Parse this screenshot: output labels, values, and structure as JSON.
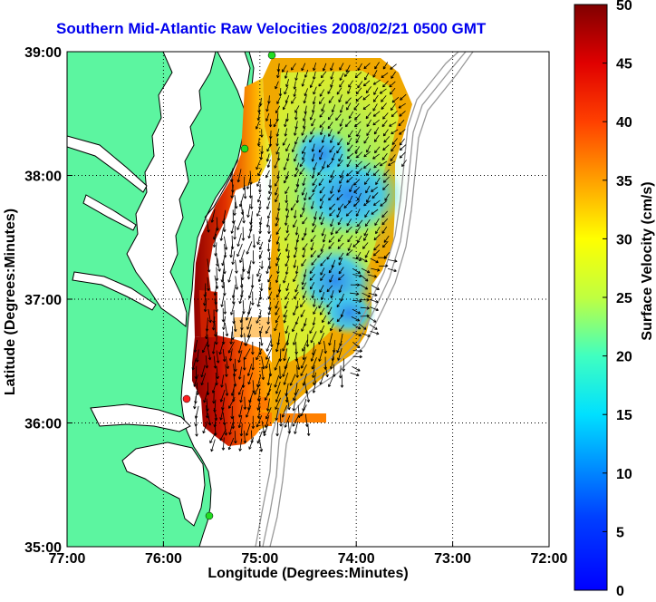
{
  "title": "Southern Mid-Atlantic Raw Velocities 2008/02/21 0500 GMT",
  "xlabel": "Longitude (Degrees:Minutes)",
  "ylabel": "Latitude (Degrees:Minutes)",
  "colorbar_label": "Surface Velocity (cm/s)",
  "x_ticks": [
    "77:00",
    "76:00",
    "75:00",
    "74:00",
    "73:00",
    "72:00"
  ],
  "y_ticks": [
    "39:00",
    "38:00",
    "37:00",
    "36:00",
    "35:00"
  ],
  "colorbar_ticks": [
    "0",
    "5",
    "10",
    "15",
    "20",
    "25",
    "30",
    "35",
    "40",
    "45",
    "50"
  ],
  "colors": {
    "land": "#5cf5a0",
    "water": "#ffffff",
    "bathymetry": "#999999",
    "title": "#0000ee",
    "station_green": "#22dd22",
    "station_red": "#ff2020"
  },
  "map": {
    "lon_range": [
      -77,
      -72
    ],
    "lat_range": [
      35,
      39
    ],
    "velocity_range_cm_s": [
      0,
      50
    ]
  }
}
